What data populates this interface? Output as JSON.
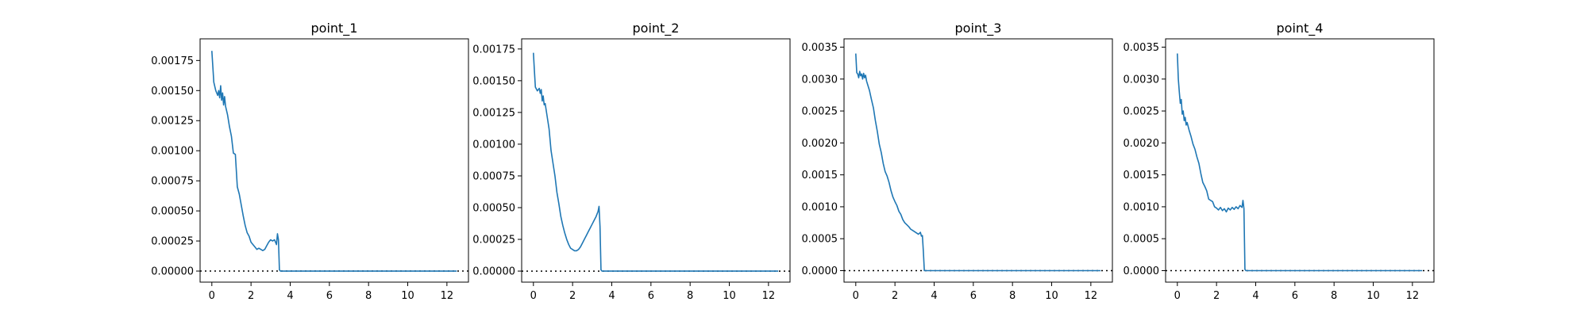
{
  "figure": {
    "background": "#ffffff"
  },
  "chart_data": [
    {
      "type": "line",
      "title": "point_1",
      "xlabel": "",
      "ylabel": "",
      "xlim": [
        -0.6,
        13.1
      ],
      "ylim": [
        -9.2e-05,
        0.00193
      ],
      "xticks": [
        0,
        2,
        4,
        6,
        8,
        10,
        12
      ],
      "xtick_labels": [
        "0",
        "2",
        "4",
        "6",
        "8",
        "10",
        "12"
      ],
      "yticks": [
        0,
        0.00025,
        0.0005,
        0.00075,
        0.001,
        0.00125,
        0.0015,
        0.00175
      ],
      "ytick_labels": [
        "0.00000",
        "0.00025",
        "0.00050",
        "0.00075",
        "0.00100",
        "0.00125",
        "0.00150",
        "0.00175"
      ],
      "reference_line": {
        "y": 0,
        "style": "dotted",
        "color": "#000000"
      },
      "color": "#1f77b4",
      "x": [
        0,
        0.05,
        0.1,
        0.2,
        0.3,
        0.35,
        0.4,
        0.45,
        0.5,
        0.55,
        0.6,
        0.65,
        0.7,
        0.8,
        0.9,
        1.0,
        1.1,
        1.2,
        1.3,
        1.4,
        1.5,
        1.6,
        1.7,
        1.8,
        1.9,
        2.0,
        2.1,
        2.2,
        2.3,
        2.4,
        2.5,
        2.6,
        2.7,
        2.8,
        2.9,
        3.0,
        3.1,
        3.2,
        3.3,
        3.35,
        3.4,
        3.45,
        3.5,
        4,
        5,
        6,
        7,
        8,
        9,
        10,
        11,
        12,
        12.5
      ],
      "values": [
        0.00183,
        0.0017,
        0.00157,
        0.0015,
        0.00146,
        0.0015,
        0.00144,
        0.00154,
        0.00142,
        0.00148,
        0.00138,
        0.00145,
        0.00137,
        0.0013,
        0.0012,
        0.00112,
        0.00098,
        0.00097,
        0.0007,
        0.00064,
        0.00055,
        0.00046,
        0.00038,
        0.00032,
        0.00029,
        0.00024,
        0.00022,
        0.0002,
        0.00018,
        0.00019,
        0.00018,
        0.00017,
        0.00018,
        0.00021,
        0.00024,
        0.00026,
        0.00025,
        0.00026,
        0.00022,
        0.00031,
        0.00026,
        1e-05,
        0,
        0,
        0,
        0,
        0,
        0,
        0,
        0,
        0,
        0,
        0
      ]
    },
    {
      "type": "line",
      "title": "point_2",
      "xlabel": "",
      "ylabel": "",
      "xlim": [
        -0.6,
        13.1
      ],
      "ylim": [
        -8.7e-05,
        0.00183
      ],
      "xticks": [
        0,
        2,
        4,
        6,
        8,
        10,
        12
      ],
      "xtick_labels": [
        "0",
        "2",
        "4",
        "6",
        "8",
        "10",
        "12"
      ],
      "yticks": [
        0,
        0.00025,
        0.0005,
        0.00075,
        0.001,
        0.00125,
        0.0015,
        0.00175
      ],
      "ytick_labels": [
        "0.00000",
        "0.00025",
        "0.00050",
        "0.00075",
        "0.00100",
        "0.00125",
        "0.00150",
        "0.00175"
      ],
      "reference_line": {
        "y": 0,
        "style": "dotted",
        "color": "#000000"
      },
      "color": "#1f77b4",
      "x": [
        0,
        0.05,
        0.1,
        0.2,
        0.3,
        0.35,
        0.4,
        0.45,
        0.5,
        0.55,
        0.6,
        0.7,
        0.8,
        0.9,
        1.0,
        1.1,
        1.2,
        1.3,
        1.4,
        1.5,
        1.6,
        1.7,
        1.8,
        1.9,
        2.0,
        2.1,
        2.2,
        2.3,
        2.4,
        2.5,
        2.6,
        2.7,
        2.8,
        2.9,
        3.0,
        3.1,
        3.2,
        3.3,
        3.35,
        3.4,
        3.45,
        3.5,
        4,
        5,
        6,
        7,
        8,
        9,
        10,
        11,
        12,
        12.5
      ],
      "values": [
        0.00172,
        0.00158,
        0.00145,
        0.00142,
        0.00144,
        0.0014,
        0.00143,
        0.00134,
        0.00138,
        0.00131,
        0.00132,
        0.00122,
        0.00112,
        0.00095,
        0.00085,
        0.00075,
        0.00062,
        0.00053,
        0.00043,
        0.00036,
        0.0003,
        0.00025,
        0.00021,
        0.00018,
        0.00017,
        0.00016,
        0.00016,
        0.00017,
        0.00019,
        0.00022,
        0.00025,
        0.00028,
        0.00031,
        0.00034,
        0.00037,
        0.0004,
        0.00043,
        0.00047,
        0.00051,
        0.00035,
        1e-05,
        0,
        0,
        0,
        0,
        0,
        0,
        0,
        0,
        0,
        0,
        0
      ]
    },
    {
      "type": "line",
      "title": "point_3",
      "xlabel": "",
      "ylabel": "",
      "xlim": [
        -0.6,
        13.1
      ],
      "ylim": [
        -0.00018,
        0.00363
      ],
      "xticks": [
        0,
        2,
        4,
        6,
        8,
        10,
        12
      ],
      "xtick_labels": [
        "0",
        "2",
        "4",
        "6",
        "8",
        "10",
        "12"
      ],
      "yticks": [
        0,
        0.0005,
        0.001,
        0.0015,
        0.002,
        0.0025,
        0.003,
        0.0035
      ],
      "ytick_labels": [
        "0.0000",
        "0.0005",
        "0.0010",
        "0.0015",
        "0.0020",
        "0.0025",
        "0.0030",
        "0.0035"
      ],
      "reference_line": {
        "y": 0,
        "style": "dotted",
        "color": "#000000"
      },
      "color": "#1f77b4",
      "x": [
        0,
        0.05,
        0.1,
        0.15,
        0.2,
        0.25,
        0.3,
        0.35,
        0.4,
        0.45,
        0.5,
        0.55,
        0.6,
        0.7,
        0.8,
        0.9,
        1.0,
        1.1,
        1.2,
        1.3,
        1.4,
        1.5,
        1.6,
        1.7,
        1.8,
        1.9,
        2.0,
        2.1,
        2.2,
        2.3,
        2.4,
        2.5,
        2.6,
        2.7,
        2.8,
        2.9,
        3.0,
        3.1,
        3.2,
        3.3,
        3.35,
        3.4,
        3.45,
        3.5,
        4,
        5,
        6,
        7,
        8,
        9,
        10,
        11,
        12,
        12.5
      ],
      "values": [
        0.0034,
        0.0031,
        0.00308,
        0.00302,
        0.00312,
        0.00305,
        0.00308,
        0.003,
        0.00309,
        0.00302,
        0.00306,
        0.00297,
        0.00292,
        0.00282,
        0.00268,
        0.00255,
        0.00235,
        0.00218,
        0.00198,
        0.00185,
        0.00168,
        0.00155,
        0.00148,
        0.00138,
        0.00125,
        0.00115,
        0.00108,
        0.00102,
        0.00093,
        0.00088,
        0.0008,
        0.00075,
        0.00072,
        0.00069,
        0.00065,
        0.00063,
        0.00061,
        0.00059,
        0.00057,
        0.0006,
        0.00054,
        0.00055,
        0.0003,
        0,
        0,
        0,
        0,
        0,
        0,
        0,
        0,
        0,
        0,
        0
      ]
    },
    {
      "type": "line",
      "title": "point_4",
      "xlabel": "",
      "ylabel": "",
      "xlim": [
        -0.6,
        13.1
      ],
      "ylim": [
        -0.00018,
        0.00363
      ],
      "xticks": [
        0,
        2,
        4,
        6,
        8,
        10,
        12
      ],
      "xtick_labels": [
        "0",
        "2",
        "4",
        "6",
        "8",
        "10",
        "12"
      ],
      "yticks": [
        0,
        0.0005,
        0.001,
        0.0015,
        0.002,
        0.0025,
        0.003,
        0.0035
      ],
      "ytick_labels": [
        "0.0000",
        "0.0005",
        "0.0010",
        "0.0015",
        "0.0020",
        "0.0025",
        "0.0030",
        "0.0035"
      ],
      "reference_line": {
        "y": 0,
        "style": "dotted",
        "color": "#000000"
      },
      "color": "#1f77b4",
      "x": [
        0,
        0.05,
        0.1,
        0.15,
        0.2,
        0.25,
        0.3,
        0.35,
        0.4,
        0.45,
        0.5,
        0.6,
        0.7,
        0.8,
        0.9,
        1.0,
        1.1,
        1.2,
        1.3,
        1.4,
        1.5,
        1.6,
        1.7,
        1.8,
        1.9,
        2.0,
        2.1,
        2.2,
        2.3,
        2.4,
        2.5,
        2.6,
        2.7,
        2.8,
        2.9,
        3.0,
        3.1,
        3.2,
        3.3,
        3.35,
        3.4,
        3.45,
        3.5,
        4,
        5,
        6,
        7,
        8,
        9,
        10,
        11,
        12,
        12.5
      ],
      "values": [
        0.0034,
        0.003,
        0.0028,
        0.00262,
        0.00268,
        0.00245,
        0.0025,
        0.00235,
        0.0024,
        0.00228,
        0.00232,
        0.0022,
        0.0021,
        0.00198,
        0.0019,
        0.00178,
        0.00168,
        0.00152,
        0.00138,
        0.00132,
        0.00125,
        0.00112,
        0.0011,
        0.00108,
        0.001,
        0.00098,
        0.00095,
        0.00099,
        0.00094,
        0.00097,
        0.00092,
        0.00098,
        0.00095,
        0.00099,
        0.00096,
        0.001,
        0.00097,
        0.00102,
        0.00099,
        0.0011,
        0.00097,
        2e-05,
        0,
        0,
        0,
        0,
        0,
        0,
        0,
        0,
        0,
        0,
        0
      ]
    }
  ]
}
